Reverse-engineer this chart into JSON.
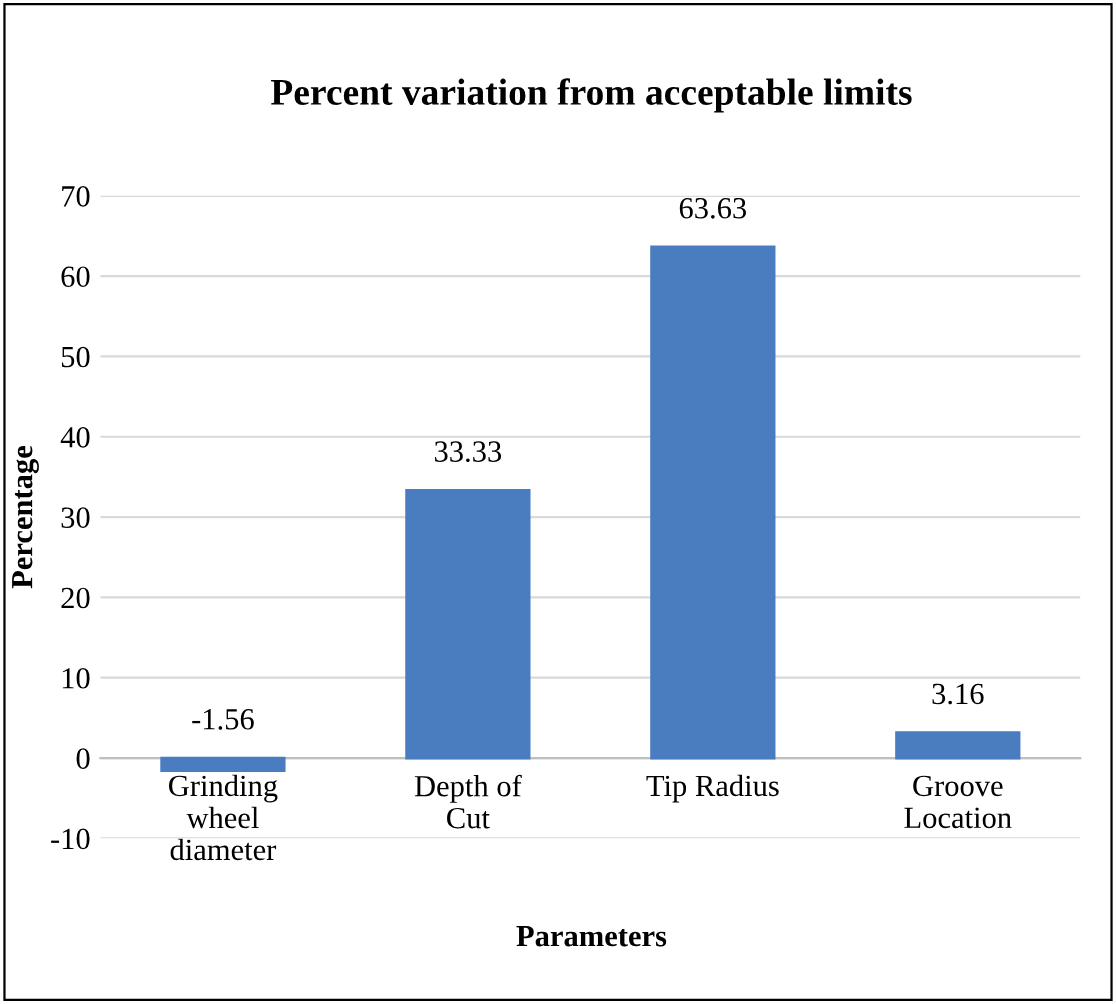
{
  "chart_data": {
    "type": "bar",
    "title": "Percent variation from acceptable limits",
    "xlabel": "Parameters",
    "ylabel": "Percentage",
    "categories": [
      "Grinding wheel diameter",
      "Depth of Cut",
      "Tip Radius",
      "Groove Location"
    ],
    "values": [
      -1.56,
      33.33,
      63.63,
      3.16
    ],
    "color": "#4a7cc0",
    "ylim": [
      -10,
      70
    ],
    "yticks": [
      -10,
      0,
      10,
      20,
      30,
      40,
      50,
      60,
      70
    ],
    "grid": "y",
    "data_labels": true
  }
}
